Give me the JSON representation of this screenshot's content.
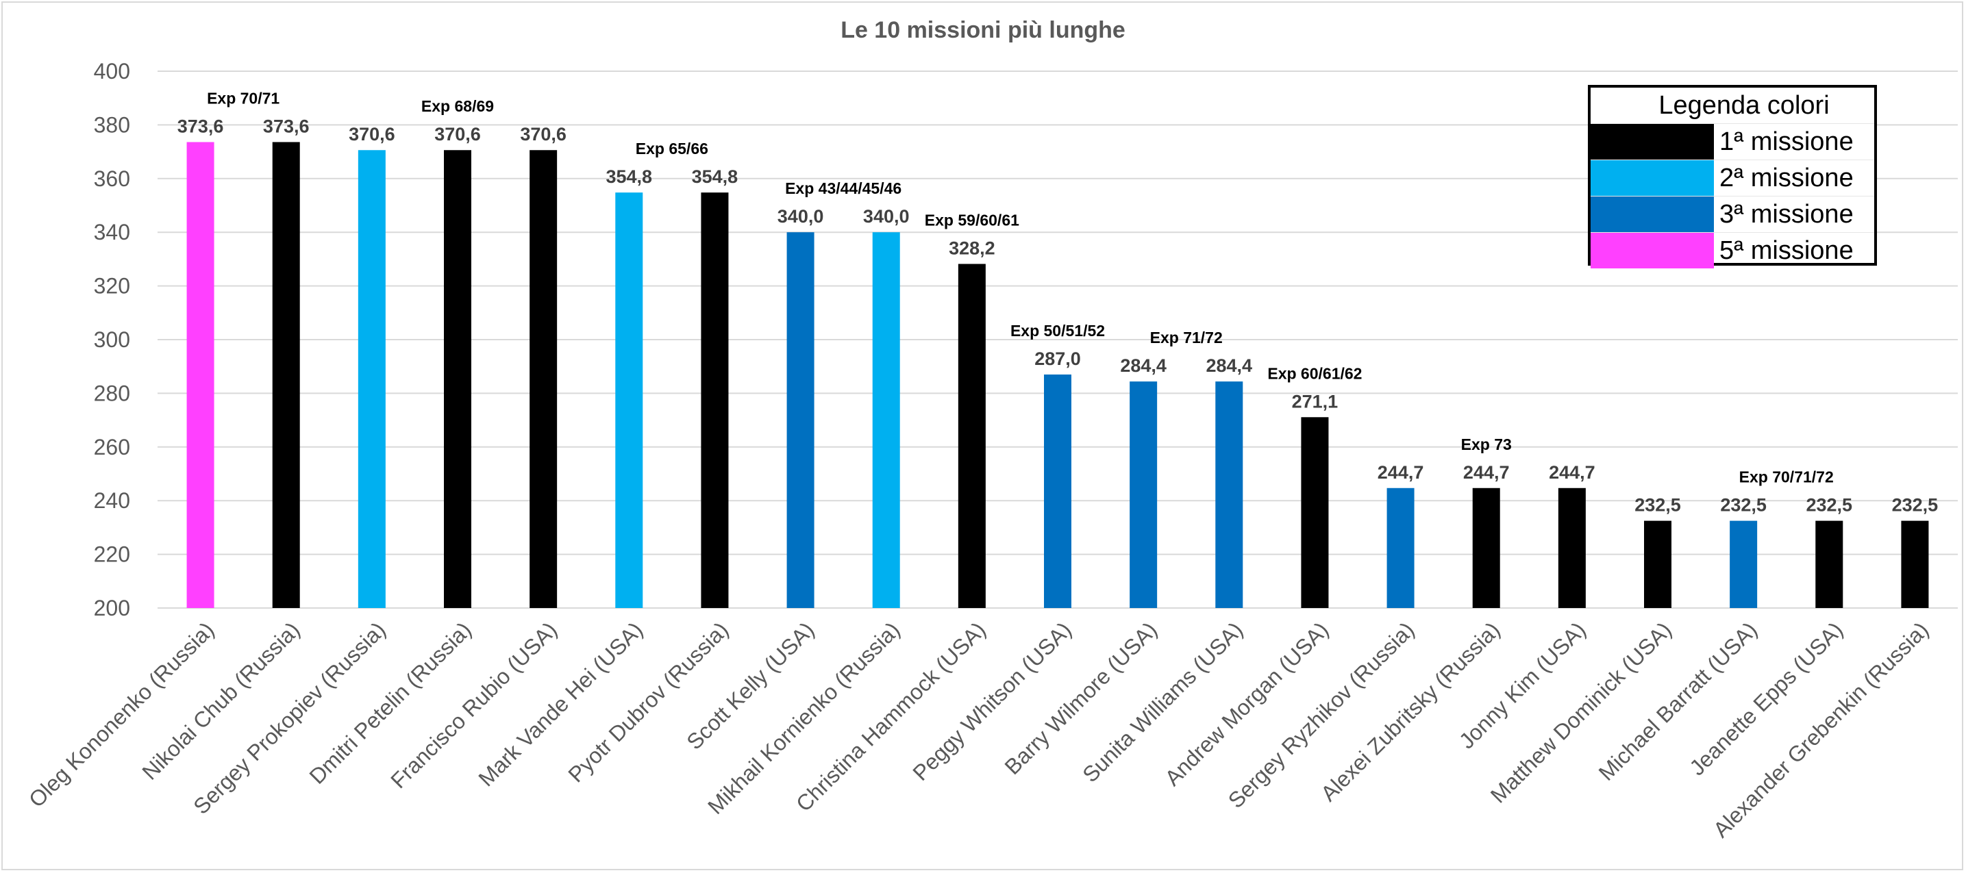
{
  "chart_data": {
    "type": "bar",
    "title": "Le 10 missioni più lunghe",
    "xlabel": "",
    "ylabel": "",
    "ylim": [
      200,
      400
    ],
    "yticks": [
      200,
      220,
      240,
      260,
      280,
      300,
      320,
      340,
      360,
      380,
      400
    ],
    "grid": true,
    "categories": [
      "Oleg Kononenko (Russia)",
      "Nikolai Chub (Russia)",
      "Sergey Prokopiev (Russia)",
      "Dmitri Petelin (Russia)",
      "Francisco Rubio (USA)",
      "Mark Vande Hei (USA)",
      "Pyotr Dubrov (Russia)",
      "Scott Kelly (USA)",
      "Mikhail Kornienko (Russia)",
      "Christina Hammock (USA)",
      "Peggy Whitson (USA)",
      "Barry Wilmore (USA)",
      "Sunita Williams (USA)",
      "Andrew Morgan (USA)",
      "Sergey Ryzhikov (Russia)",
      "Alexei Zubritsky (Russia)",
      "Jonny Kim (USA)",
      "Matthew Dominick (USA)",
      "Michael Barratt (USA)",
      "Jeanette Epps (USA)",
      "Alexander Grebenkin (Russia)"
    ],
    "values": [
      373.6,
      373.6,
      370.6,
      370.6,
      370.6,
      354.8,
      354.8,
      340.0,
      340.0,
      328.2,
      287.0,
      284.4,
      284.4,
      271.1,
      244.7,
      244.7,
      244.7,
      232.5,
      232.5,
      232.5,
      232.5
    ],
    "value_labels": [
      "373,6",
      "373,6",
      "370,6",
      "370,6",
      "370,6",
      "354,8",
      "354,8",
      "340,0",
      "340,0",
      "328,2",
      "287,0",
      "284,4",
      "284,4",
      "271,1",
      "244,7",
      "244,7",
      "244,7",
      "232,5",
      "232,5",
      "232,5",
      "232,5"
    ],
    "mission_number": [
      5,
      1,
      2,
      1,
      1,
      2,
      1,
      3,
      2,
      1,
      3,
      3,
      3,
      1,
      3,
      1,
      1,
      1,
      3,
      1,
      1
    ],
    "expedition_annotations": [
      {
        "text": "Exp 70/71",
        "bar_index": 0.5
      },
      {
        "text": "Exp 68/69",
        "bar_index": 3.0
      },
      {
        "text": "Exp 65/66",
        "bar_index": 5.5
      },
      {
        "text": "Exp 43/44/45/46",
        "bar_index": 7.5
      },
      {
        "text": "Exp 59/60/61",
        "bar_index": 9.0
      },
      {
        "text": "Exp 50/51/52",
        "bar_index": 10.0
      },
      {
        "text": "Exp 71/72",
        "bar_index": 11.5
      },
      {
        "text": "Exp 60/61/62",
        "bar_index": 13.0
      },
      {
        "text": "Exp 73",
        "bar_index": 15.0
      },
      {
        "text": "Exp 70/71/72",
        "bar_index": 18.5
      }
    ]
  },
  "legend": {
    "title": "Legenda colori",
    "items": [
      {
        "label": "1ª missione",
        "color": "#000000",
        "mission": 1
      },
      {
        "label": "2ª missione",
        "color": "#00b0f0",
        "mission": 2
      },
      {
        "label": "3ª missione",
        "color": "#0070c0",
        "mission": 3
      },
      {
        "label": "5ª missione",
        "color": "#ff40ff",
        "mission": 5
      }
    ]
  }
}
